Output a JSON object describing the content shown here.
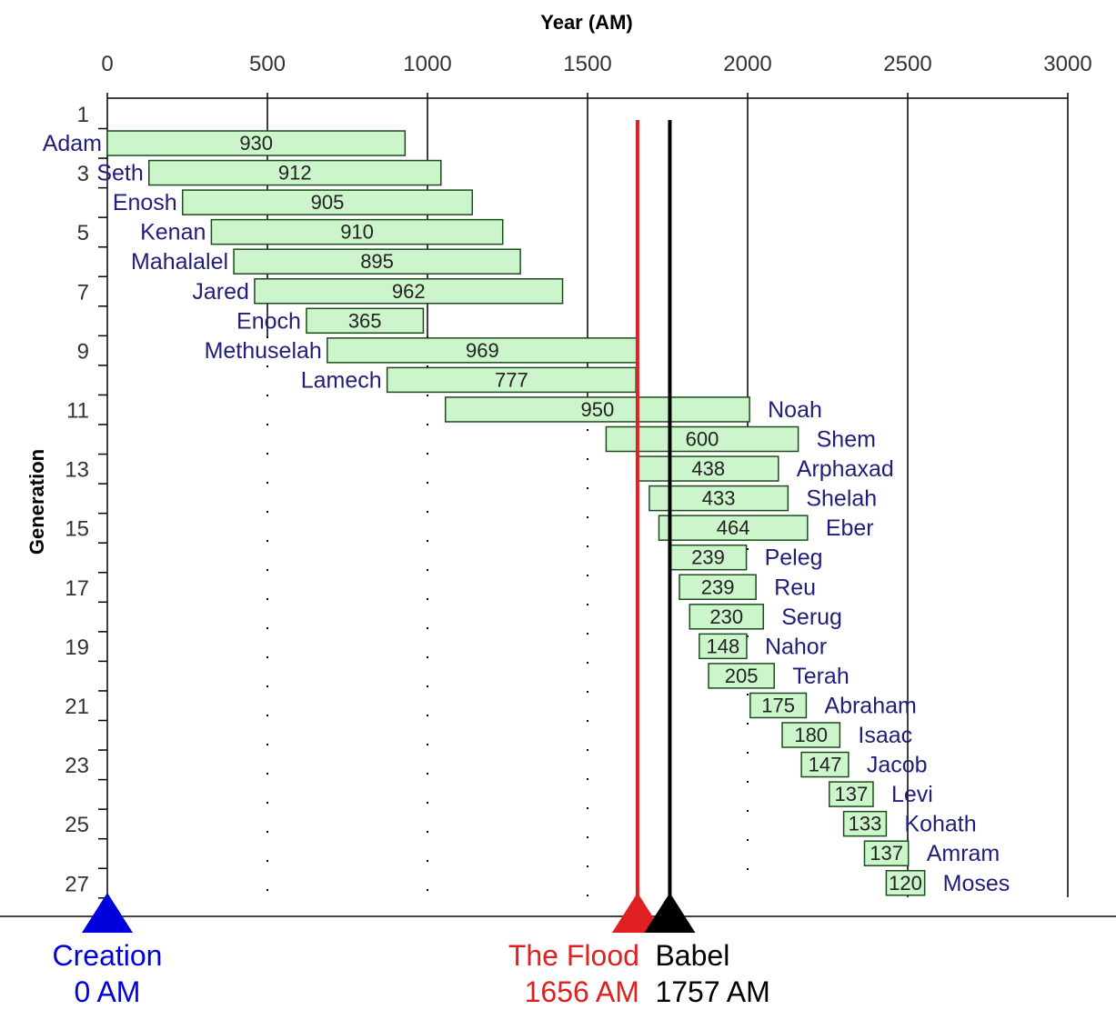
{
  "chart_data": {
    "type": "bar",
    "xlabel": "Year (AM)",
    "ylabel": "Generation",
    "xlim": [
      0,
      3000
    ],
    "x_ticks": [
      "0",
      "500",
      "1000",
      "1500",
      "2000",
      "2500",
      "3000"
    ],
    "y_ticks": [
      "1",
      "3",
      "5",
      "7",
      "9",
      "11",
      "13",
      "15",
      "17",
      "19",
      "21",
      "23",
      "25",
      "27"
    ],
    "grid": "vertical",
    "series": [
      {
        "values": [
          {
            "generation": 1,
            "name": "Adam",
            "start": 0,
            "lifespan": 930,
            "label": "930"
          },
          {
            "generation": 2,
            "name": "Seth",
            "start": 130,
            "lifespan": 912,
            "label": "912"
          },
          {
            "generation": 3,
            "name": "Enosh",
            "start": 235,
            "lifespan": 905,
            "label": "905"
          },
          {
            "generation": 4,
            "name": "Kenan",
            "start": 325,
            "lifespan": 910,
            "label": "910"
          },
          {
            "generation": 5,
            "name": "Mahalalel",
            "start": 395,
            "lifespan": 895,
            "label": "895"
          },
          {
            "generation": 6,
            "name": "Jared",
            "start": 460,
            "lifespan": 962,
            "label": "962"
          },
          {
            "generation": 7,
            "name": "Enoch",
            "start": 622,
            "lifespan": 365,
            "label": "365"
          },
          {
            "generation": 8,
            "name": "Methuselah",
            "start": 687,
            "lifespan": 969,
            "label": "969"
          },
          {
            "generation": 9,
            "name": "Lamech",
            "start": 874,
            "lifespan": 777,
            "label": "777"
          },
          {
            "generation": 10,
            "name": "Noah",
            "start": 1056,
            "lifespan": 950,
            "label": "950"
          },
          {
            "generation": 11,
            "name": "Shem",
            "start": 1558,
            "lifespan": 600,
            "label": "600"
          },
          {
            "generation": 12,
            "name": "Arphaxad",
            "start": 1658,
            "lifespan": 438,
            "label": "438"
          },
          {
            "generation": 13,
            "name": "Shelah",
            "start": 1693,
            "lifespan": 433,
            "label": "433"
          },
          {
            "generation": 14,
            "name": "Eber",
            "start": 1723,
            "lifespan": 464,
            "label": "464"
          },
          {
            "generation": 15,
            "name": "Peleg",
            "start": 1757,
            "lifespan": 239,
            "label": "239"
          },
          {
            "generation": 16,
            "name": "Reu",
            "start": 1787,
            "lifespan": 239,
            "label": "239"
          },
          {
            "generation": 17,
            "name": "Serug",
            "start": 1819,
            "lifespan": 230,
            "label": "230"
          },
          {
            "generation": 18,
            "name": "Nahor",
            "start": 1849,
            "lifespan": 148,
            "label": "148"
          },
          {
            "generation": 19,
            "name": "Terah",
            "start": 1878,
            "lifespan": 205,
            "label": "205"
          },
          {
            "generation": 20,
            "name": "Abraham",
            "start": 2008,
            "lifespan": 175,
            "label": "175"
          },
          {
            "generation": 21,
            "name": "Isaac",
            "start": 2108,
            "lifespan": 180,
            "label": "180"
          },
          {
            "generation": 22,
            "name": "Jacob",
            "start": 2168,
            "lifespan": 147,
            "label": "147"
          },
          {
            "generation": 23,
            "name": "Levi",
            "start": 2255,
            "lifespan": 137,
            "label": "137"
          },
          {
            "generation": 24,
            "name": "Kohath",
            "start": 2300,
            "lifespan": 133,
            "label": "133"
          },
          {
            "generation": 25,
            "name": "Amram",
            "start": 2365,
            "lifespan": 137,
            "label": "137"
          },
          {
            "generation": 26,
            "name": "Moses",
            "start": 2433,
            "lifespan": 120,
            "label": "120"
          }
        ]
      }
    ],
    "events": [
      {
        "key": "creation",
        "year": 0,
        "title": "Creation",
        "subtitle": "0 AM",
        "color": "#0000dd"
      },
      {
        "key": "flood",
        "year": 1656,
        "title": "The Flood",
        "subtitle": "1656 AM",
        "color": "#e02020"
      },
      {
        "key": "babel",
        "year": 1757,
        "title": "Babel",
        "subtitle": "1757 AM",
        "color": "#000000"
      }
    ],
    "colors": {
      "bar_fill": "#ccf5cc",
      "bar_stroke": "#1a4d1a",
      "name_text": "#1f1f7a",
      "grid": "#000000"
    }
  }
}
